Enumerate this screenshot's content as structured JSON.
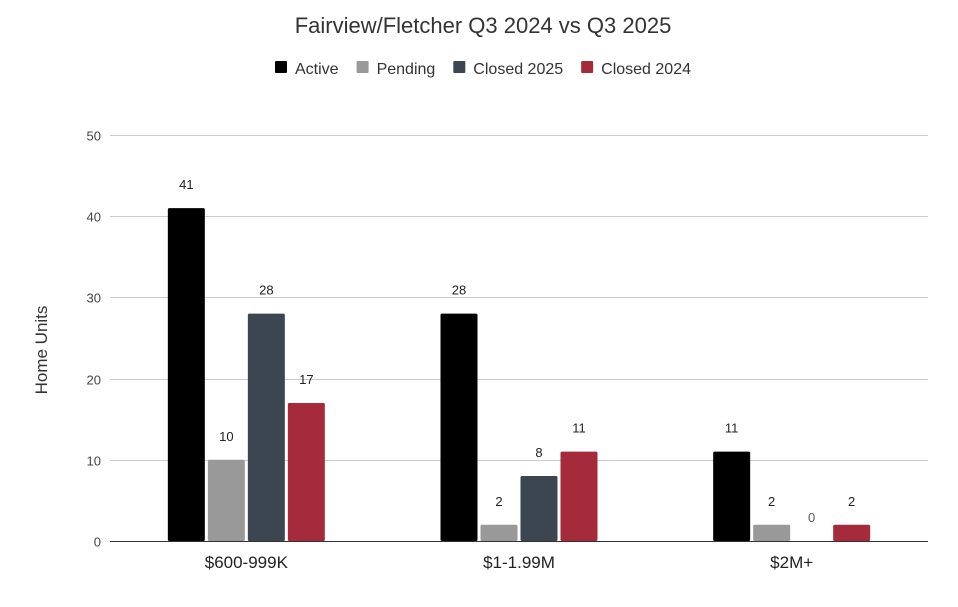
{
  "chart_data": {
    "type": "bar",
    "title": "Fairview/Fletcher Q3 2024 vs Q3 2025",
    "xlabel": "",
    "ylabel": "Home Units",
    "categories": [
      "$600-999K",
      "$1-1.99M",
      "$2M+"
    ],
    "ylim": [
      0,
      50
    ],
    "yticks": [
      "0",
      "10",
      "20",
      "30",
      "40",
      "50"
    ],
    "grid": true,
    "legend_position": "top",
    "series": [
      {
        "name": "Active",
        "color": "#000000",
        "values": [
          41,
          28,
          11
        ]
      },
      {
        "name": "Pending",
        "color": "#999999",
        "values": [
          10,
          2,
          2
        ]
      },
      {
        "name": "Closed 2025",
        "color": "#3c4650",
        "values": [
          28,
          8,
          0
        ]
      },
      {
        "name": "Closed 2024",
        "color": "#a52a3a",
        "values": [
          17,
          11,
          2
        ]
      }
    ]
  }
}
